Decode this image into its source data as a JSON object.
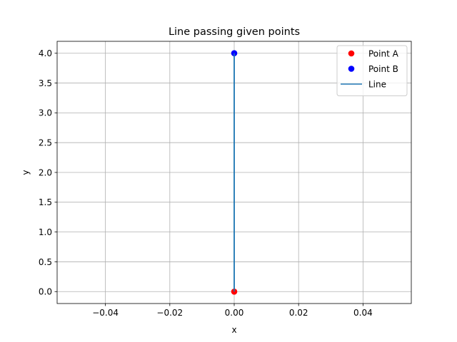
{
  "chart_data": {
    "type": "line",
    "title": "Line passing given points",
    "xlabel": "x",
    "ylabel": "y",
    "xlim": [
      -0.055,
      0.055
    ],
    "ylim": [
      -0.2,
      4.2
    ],
    "x_ticks": [
      -0.04,
      -0.02,
      0.0,
      0.02,
      0.04
    ],
    "x_tick_labels": [
      "−0.04",
      "−0.02",
      "0.00",
      "0.02",
      "0.04"
    ],
    "y_ticks": [
      0.0,
      0.5,
      1.0,
      1.5,
      2.0,
      2.5,
      3.0,
      3.5,
      4.0
    ],
    "y_tick_labels": [
      "0.0",
      "0.5",
      "1.0",
      "1.5",
      "2.0",
      "2.5",
      "3.0",
      "3.5",
      "4.0"
    ],
    "grid": true,
    "legend_position": "top-right",
    "series": [
      {
        "name": "Point A",
        "kind": "marker",
        "color": "#ff0000",
        "x": [
          0
        ],
        "y": [
          0
        ]
      },
      {
        "name": "Point B",
        "kind": "marker",
        "color": "#0000ff",
        "x": [
          0
        ],
        "y": [
          4
        ]
      },
      {
        "name": "Line",
        "kind": "line",
        "color": "#1f77b4",
        "x": [
          0,
          0
        ],
        "y": [
          0,
          4
        ]
      }
    ]
  }
}
